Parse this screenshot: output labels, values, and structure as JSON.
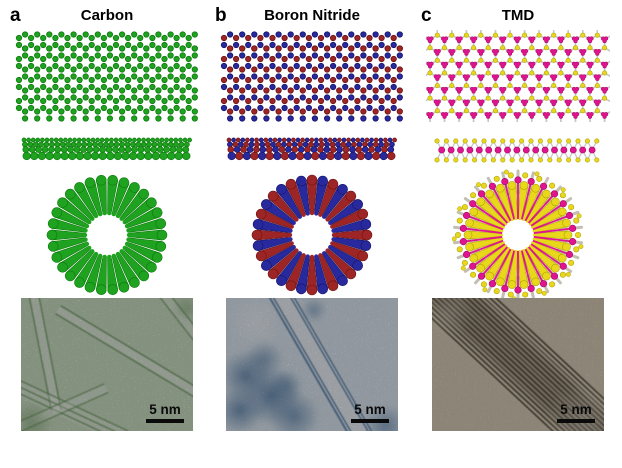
{
  "figure": {
    "panels": [
      {
        "letter": "a",
        "title": "Carbon",
        "material": "carbon",
        "scale_bar": "5 nm",
        "colors": {
          "atom_primary": "#1fa21f",
          "atom_primary_edge": "#0e7a0e",
          "atom_secondary": "#1fa21f",
          "atom_secondary_edge": "#0e7a0e",
          "bond": "#c6c6c6",
          "tem_background": "#caddc2",
          "tem_feature": "#6b9760",
          "scale_text": "#0a0a0a"
        }
      },
      {
        "letter": "b",
        "title": "Boron Nitride",
        "material": "bn",
        "scale_bar": "5 nm",
        "colors": {
          "atom_primary": "#9e2525",
          "atom_primary_edge": "#6d1414",
          "atom_secondary": "#29299e",
          "atom_secondary_edge": "#14146d",
          "bond": "#c6c6c6",
          "tem_background": "#dce7f2",
          "tem_feature": "#577fa9",
          "scale_text": "#0a0a0a"
        }
      },
      {
        "letter": "c",
        "title": "TMD",
        "material": "tmd",
        "scale_bar": "5 nm",
        "colors": {
          "atom_primary": "#e0148e",
          "atom_primary_edge": "#a30b66",
          "atom_secondary": "#e8d71b",
          "atom_secondary_edge": "#b1a306",
          "bond": "#c6c6c6",
          "fringe": "#b9b6a6",
          "tem_background": "#d6cab4",
          "tem_feature": "#50432f",
          "scale_text": "#0a0a0a"
        }
      }
    ]
  }
}
